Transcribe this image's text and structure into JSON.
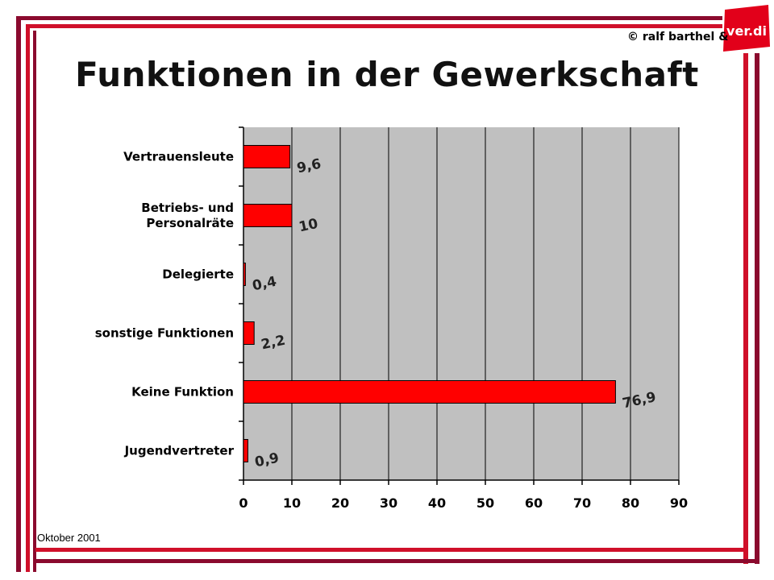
{
  "title": "Funktionen in der Gewerkschaft",
  "copyright": "© ralf barthel &",
  "footer": "Oktober 2001",
  "logo": {
    "text": "ver.di",
    "color": "#e2001a"
  },
  "colors": {
    "frame_dark": "#8b0a2e",
    "frame_red": "#d0102a",
    "bar": "#ff0000",
    "plot_bg": "#c0c0c0"
  },
  "chart_data": {
    "type": "bar",
    "orientation": "horizontal",
    "title": "Funktionen in der Gewerkschaft",
    "categories": [
      [
        "Vertrauensleute"
      ],
      [
        "Betriebs- und",
        "Personalräte"
      ],
      [
        "Delegierte"
      ],
      [
        "sonstige Funktionen"
      ],
      [
        "Keine Funktion"
      ],
      [
        "Jugendvertreter"
      ]
    ],
    "values": [
      9.6,
      10,
      0.4,
      2.2,
      76.9,
      0.9
    ],
    "data_labels": [
      "9,6",
      "10",
      "0,4",
      "2,2",
      "76,9",
      "0,9"
    ],
    "xlim": [
      0,
      90
    ],
    "xticks": [
      0,
      10,
      20,
      30,
      40,
      50,
      60,
      70,
      80,
      90
    ],
    "grid": true,
    "legend": "none"
  }
}
